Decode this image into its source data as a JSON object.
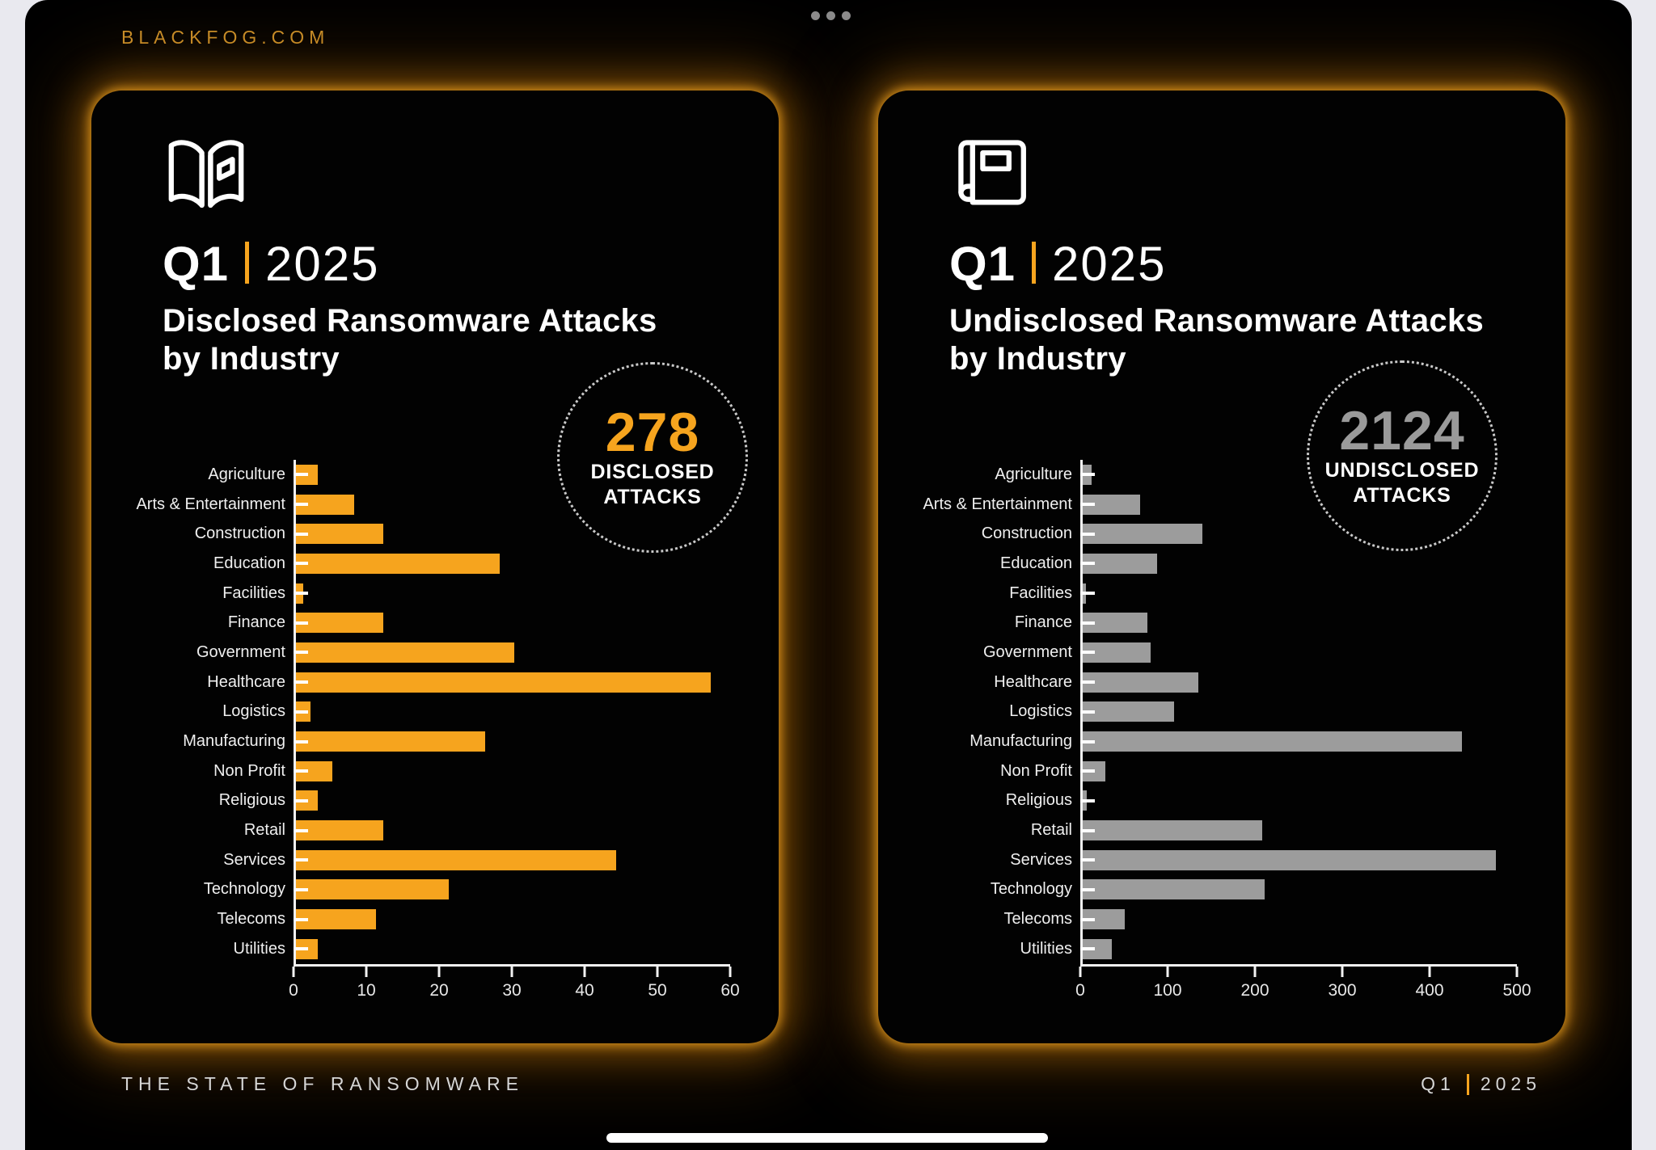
{
  "page": {
    "site": "BLACKFOG.COM",
    "footer_left": "THE STATE OF RANSOMWARE",
    "footer_right_q": "Q1",
    "footer_right_year": "2025"
  },
  "colors": {
    "orange": "#F6A41E",
    "gray_bar": "#9C9C9C",
    "gray_value": "#9A9A9A",
    "white": "#FFFFFF"
  },
  "chart_data": [
    {
      "type": "bar",
      "orientation": "horizontal",
      "icon": "open-book-icon",
      "title_q": "Q1",
      "title_year": "2025",
      "subtitle_line1": "Disclosed Ransomware Attacks",
      "subtitle_line2": "by Industry",
      "badge_value": "278",
      "badge_line1": "DISCLOSED",
      "badge_line2": "ATTACKS",
      "badge_color": "#F6A41E",
      "bar_color": "#F6A41E",
      "categories": [
        "Agriculture",
        "Arts & Entertainment",
        "Construction",
        "Education",
        "Facilities",
        "Finance",
        "Government",
        "Healthcare",
        "Logistics",
        "Manufacturing",
        "Non Profit",
        "Religious",
        "Retail",
        "Services",
        "Technology",
        "Telecoms",
        "Utilities"
      ],
      "values": [
        3,
        8,
        12,
        28,
        1,
        12,
        30,
        57,
        2,
        26,
        5,
        3,
        12,
        44,
        21,
        11,
        3
      ],
      "xlim": [
        0,
        60
      ],
      "xticks": [
        0,
        10,
        20,
        30,
        40,
        50,
        60
      ],
      "grid": false,
      "legend": null
    },
    {
      "type": "bar",
      "orientation": "horizontal",
      "icon": "closed-book-icon",
      "title_q": "Q1",
      "title_year": "2025",
      "subtitle_line1": "Undisclosed Ransomware Attacks",
      "subtitle_line2": "by Industry",
      "badge_value": "2124",
      "badge_line1": "UNDISCLOSED",
      "badge_line2": "ATTACKS",
      "badge_color": "#9A9A9A",
      "bar_color": "#9C9C9C",
      "categories": [
        "Agriculture",
        "Arts & Entertainment",
        "Construction",
        "Education",
        "Facilities",
        "Finance",
        "Government",
        "Healthcare",
        "Logistics",
        "Manufacturing",
        "Non Profit",
        "Religious",
        "Retail",
        "Services",
        "Technology",
        "Telecoms",
        "Utilities"
      ],
      "values": [
        10,
        66,
        137,
        85,
        4,
        74,
        78,
        132,
        105,
        434,
        26,
        5,
        206,
        473,
        208,
        48,
        33
      ],
      "xlim": [
        0,
        500
      ],
      "xticks": [
        0,
        100,
        200,
        300,
        400,
        500
      ],
      "grid": false,
      "legend": null
    }
  ]
}
